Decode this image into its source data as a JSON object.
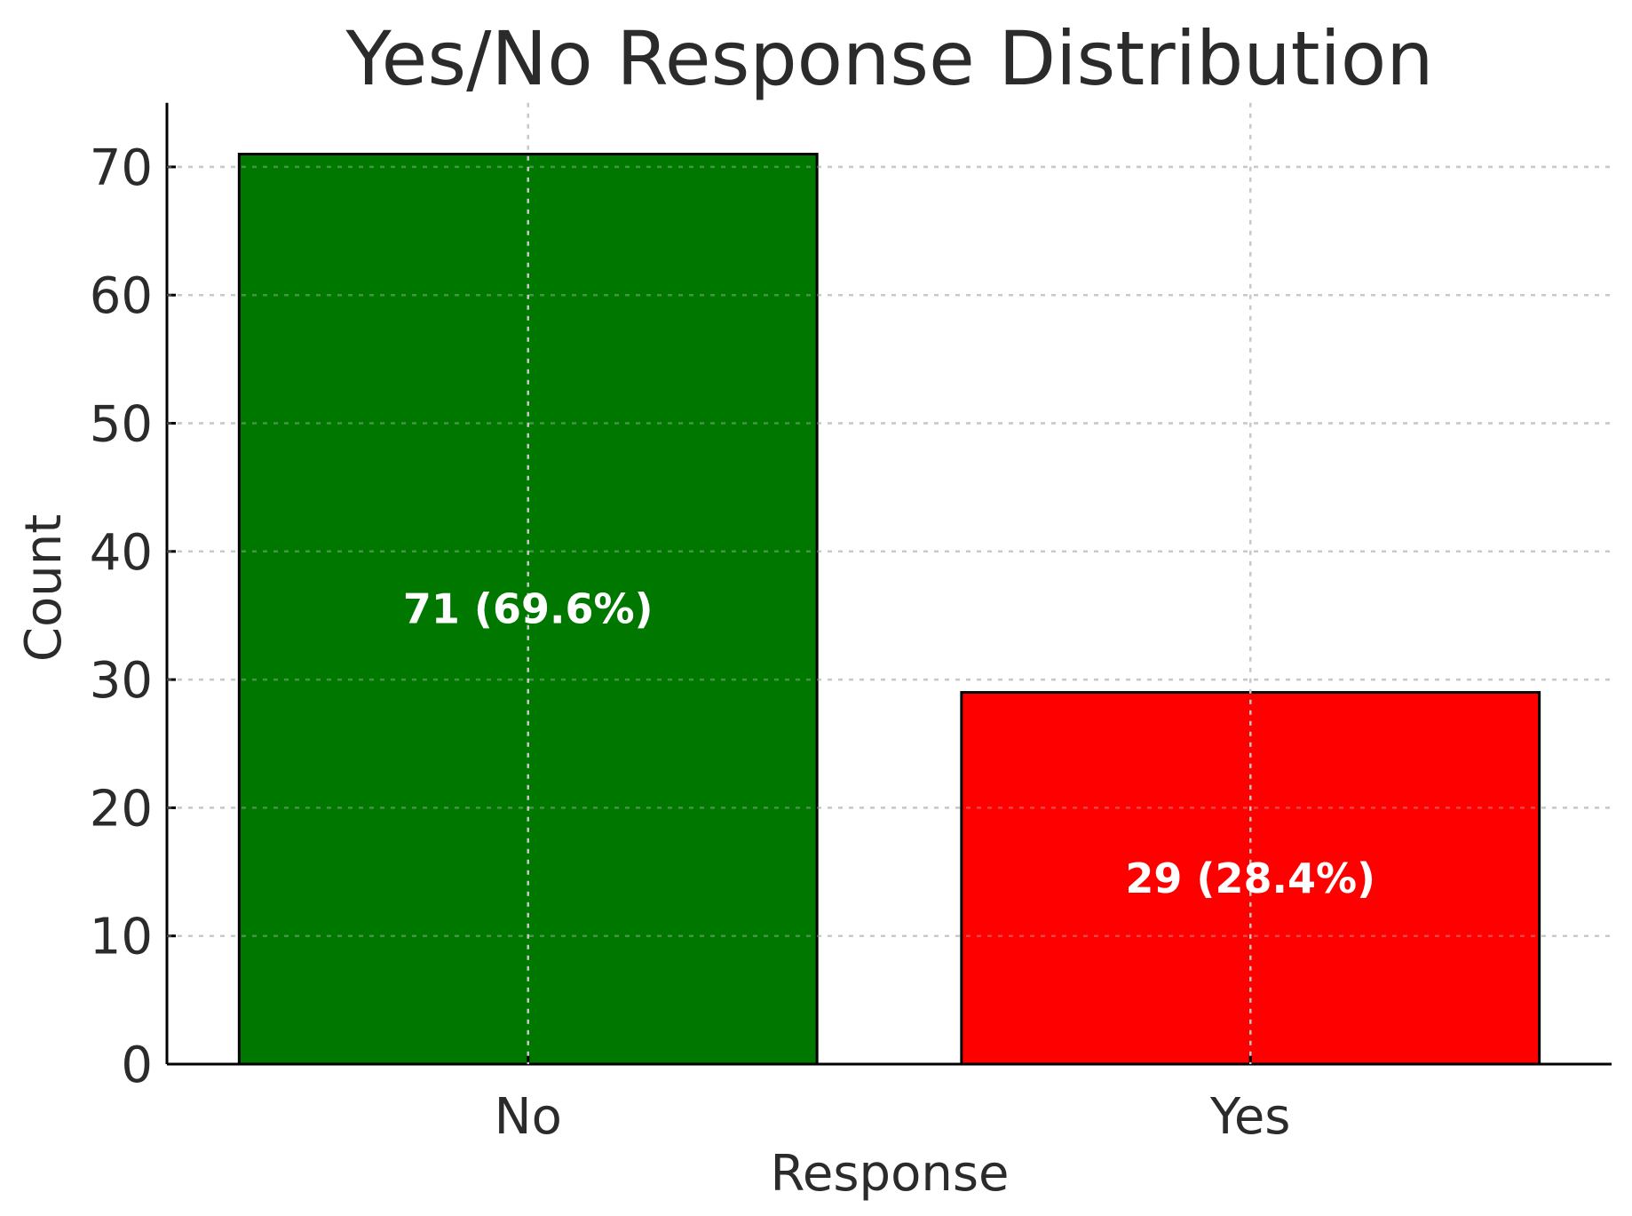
{
  "chart_data": {
    "type": "bar",
    "title": "Yes/No Response Distribution",
    "xlabel": "Response",
    "ylabel": "Count",
    "categories": [
      "No",
      "Yes"
    ],
    "values": [
      71,
      29
    ],
    "bar_labels": [
      "71 (69.6%)",
      "29 (28.4%)"
    ],
    "colors": [
      "#007800",
      "#ff0000"
    ],
    "ylim": [
      0,
      75
    ],
    "yticks": [
      0,
      10,
      20,
      30,
      40,
      50,
      60,
      70
    ],
    "grid": true
  }
}
